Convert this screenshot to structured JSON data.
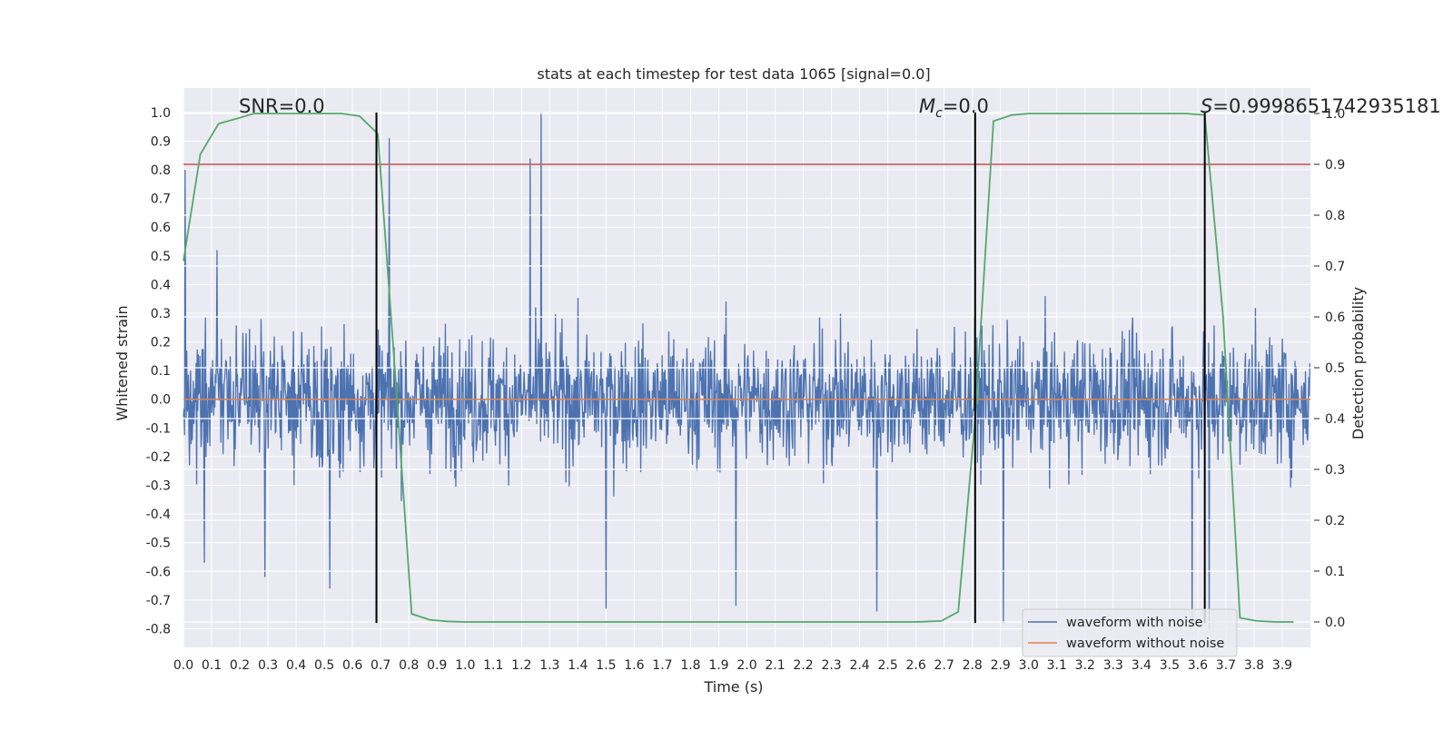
{
  "chart_data": {
    "type": "line",
    "title": "stats at each timestep for test data 1065 [signal=0.0]",
    "xlabel": "Time (s)",
    "ylabel": "Whitened strain",
    "y2label": "Detection probability",
    "xlim": [
      0.0,
      4.0
    ],
    "ylim": [
      -0.865,
      1.085
    ],
    "y2lim": [
      -0.05,
      1.05
    ],
    "xticks": [
      "0.0",
      "0.1",
      "0.2",
      "0.3",
      "0.4",
      "0.5",
      "0.6",
      "0.7",
      "0.8",
      "0.9",
      "1.0",
      "1.1",
      "1.2",
      "1.3",
      "1.4",
      "1.5",
      "1.6",
      "1.7",
      "1.8",
      "1.9",
      "2.0",
      "2.1",
      "2.2",
      "2.3",
      "2.4",
      "2.5",
      "2.6",
      "2.7",
      "2.8",
      "2.9",
      "3.0",
      "3.1",
      "3.2",
      "3.3",
      "3.4",
      "3.5",
      "3.6",
      "3.7",
      "3.8",
      "3.9"
    ],
    "yticks": [
      "1.0",
      "0.9",
      "0.8",
      "0.7",
      "0.6",
      "0.5",
      "0.4",
      "0.3",
      "0.2",
      "0.1",
      "0.0",
      "-0.1",
      "-0.2",
      "-0.3",
      "-0.4",
      "-0.5",
      "-0.6",
      "-0.7",
      "-0.8"
    ],
    "y2ticks": [
      "1.0",
      "0.9",
      "0.8",
      "0.7",
      "0.6",
      "0.5",
      "0.4",
      "0.3",
      "0.2",
      "0.1",
      "0.0"
    ],
    "grid": true,
    "legend_position": "lower right",
    "annotations": {
      "snr": "SNR=0.0",
      "mc_symbol": "M",
      "mc_sub": "c",
      "mc_value": "=0.0",
      "s_symbol": "S",
      "s_value": "=0.9998651742935181"
    },
    "series": [
      {
        "name": "waveform with noise",
        "color": "#4c72b0",
        "description_values": "dense noise, amplitude mostly within ±0.5, peaks to ~1.0 at t≈1.27",
        "noise_amplitude": 0.22,
        "noise_seed": 1065,
        "spikes": [
          [
            0.005,
            0.8
          ],
          [
            0.075,
            -0.57
          ],
          [
            0.12,
            0.52
          ],
          [
            0.29,
            -0.62
          ],
          [
            0.52,
            -0.66
          ],
          [
            0.73,
            0.91
          ],
          [
            1.23,
            0.84
          ],
          [
            1.27,
            1.0
          ],
          [
            1.5,
            -0.73
          ],
          [
            1.96,
            -0.72
          ],
          [
            2.46,
            -0.74
          ],
          [
            2.91,
            -0.78
          ],
          [
            3.58,
            -0.79
          ],
          [
            3.64,
            -0.8
          ]
        ]
      },
      {
        "name": "waveform without noise",
        "color": "#dd8452",
        "y_constant": 0.0
      },
      {
        "name": "detection probability",
        "axis": "right",
        "color": "#55a868",
        "x": [
          0.0,
          0.06,
          0.125,
          0.19,
          0.25,
          0.31,
          0.375,
          0.44,
          0.5,
          0.56,
          0.625,
          0.69,
          0.75,
          0.81,
          0.875,
          0.94,
          1.0,
          1.5,
          2.0,
          2.5,
          2.6,
          2.69,
          2.75,
          2.81,
          2.875,
          2.94,
          3.0,
          3.5,
          3.56,
          3.625,
          3.69,
          3.75,
          3.81,
          3.875,
          3.94
        ],
        "y": [
          0.71,
          0.92,
          0.98,
          0.99,
          1.0,
          1.0,
          1.0,
          1.0,
          1.0,
          1.0,
          0.995,
          0.96,
          0.5,
          0.016,
          0.004,
          0.001,
          0.0,
          0.0,
          0.0,
          0.0,
          0.0,
          0.002,
          0.02,
          0.4,
          0.985,
          0.997,
          1.0,
          1.0,
          1.0,
          0.997,
          0.6,
          0.008,
          0.002,
          0.0,
          0.0
        ]
      }
    ],
    "threshold": {
      "axis": "right",
      "y": 0.9,
      "color": "#c44e52"
    },
    "vlines": {
      "x": [
        0.685,
        2.81,
        3.625
      ],
      "ymin": -0.78,
      "ymax": 1.0,
      "color": "#000000"
    },
    "legend": [
      {
        "label": "waveform with noise",
        "color": "#4c72b0"
      },
      {
        "label": "waveform without noise",
        "color": "#dd8452"
      }
    ],
    "colors": {
      "axes_bg": "#eaeaf2",
      "grid": "#ffffff",
      "page_bg": "#ffffff"
    }
  }
}
